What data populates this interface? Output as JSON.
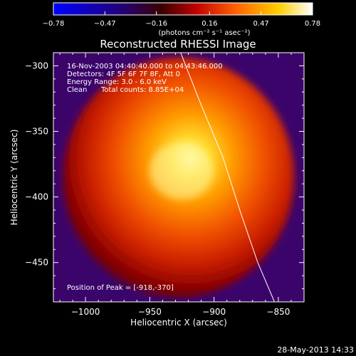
{
  "chart_data": {
    "type": "heatmap",
    "title": "Reconstructed RHESSI Image",
    "xlabel": "Heliocentric X (arcsec)",
    "ylabel": "Heliocentric Y (arcsec)",
    "xlim": [
      -1025,
      -830
    ],
    "ylim": [
      -480,
      -290
    ],
    "x_ticks": [
      -1000,
      -950,
      -900,
      -850
    ],
    "y_ticks": [
      -300,
      -350,
      -400,
      -450
    ],
    "colorbar": {
      "ticks": [
        "-0.78",
        "-0.47",
        "-0.16",
        "0.16",
        "0.47",
        "0.78"
      ],
      "label": "(photons cm⁻² s⁻¹ asec⁻²)",
      "range": [
        -0.78,
        0.78
      ],
      "colors": [
        "#0000ff",
        "#200080",
        "#3c0000",
        "#c00000",
        "#ff6000",
        "#ffd000",
        "#ffffff"
      ]
    },
    "annotations": {
      "time": "16-Nov-2003 04:40:40.000 to 04:43:46.000",
      "detectors": "Detectors: 4F 5F 6F 7F 8F, Att 0",
      "energy": "Energy Range: 3.0 - 6.0 keV",
      "method": "Clean",
      "counts": "Total counts: 8.85E+04",
      "peak": "Position of Peak = [-918,-370]"
    },
    "peak": [
      -918,
      -370
    ],
    "limb_curve": [
      [
        -926,
        -290
      ],
      [
        -910,
        -330
      ],
      [
        -893,
        -370
      ],
      [
        -880,
        -410
      ],
      [
        -866,
        -450
      ],
      [
        -853,
        -480
      ]
    ]
  },
  "footer": {
    "timestamp": "28-May-2013 14:33"
  }
}
